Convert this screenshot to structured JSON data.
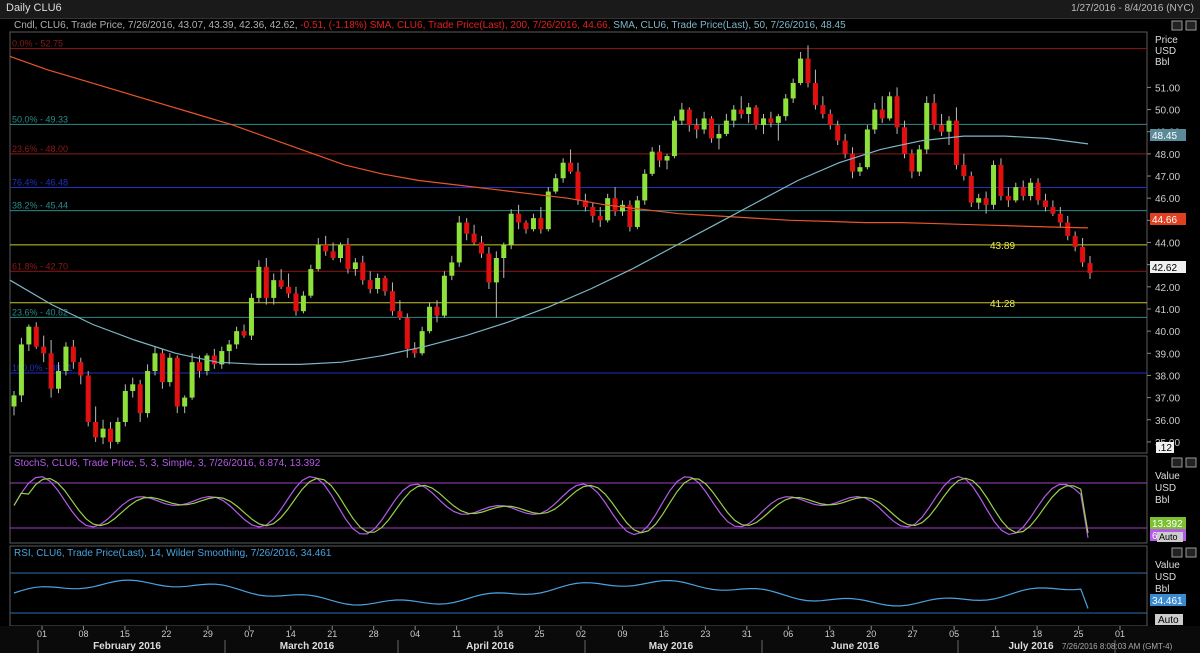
{
  "window": {
    "title": "Daily CLU6",
    "date_range": "1/27/2016 - 8/4/2016 (NYC)"
  },
  "legend": {
    "main_prefix": "Cndl, CLU6, Trade Price, 7/26/2016, 43.07, 43.39, 42.36, 42.62,",
    "main_change": "-0.51, (-1.18%)",
    "sma200": "SMA, CLU6, Trade Price(Last), 200, 7/26/2016, 44.66,",
    "sma50": "SMA, CLU6, Trade Price(Last), 50, 7/26/2016, 48.45",
    "stoch": "StochS, CLU6, Trade Price, 5, 3, Simple, 3, 7/26/2016, 6.874, 13.392",
    "rsi": "RSI, CLU6, Trade Price(Last), 14, Wilder Smoothing, 7/26/2016, 34.461"
  },
  "colors": {
    "up": "#8ee03a",
    "down": "#e01010",
    "sma200": "#e8552a",
    "sma50": "#7fb6c8",
    "stoch_k": "#b35ce8",
    "stoch_d": "#9ad04a",
    "rsi": "#4aa3e0",
    "grid_red": "#8a1a1a",
    "grid_cyan": "#2a8a8a",
    "grid_yellow": "#c8c830",
    "grid_blue": "#2030c0"
  },
  "main_axis": {
    "title": [
      "Price",
      "USD",
      "Bbl"
    ],
    "ticks": [
      "52.00",
      "51.00",
      "50.00",
      "49.00",
      "48.00",
      "47.00",
      "46.00",
      "45.00",
      "44.00",
      "43.00",
      "42.00",
      "41.00",
      "40.00",
      "39.00",
      "38.00",
      "37.00",
      "36.00",
      "35.00"
    ],
    "badges": {
      "sma50": "48.45",
      "sma200": "44.66",
      "last": "42.62",
      "last2": ".12"
    }
  },
  "fib_levels": [
    {
      "label": "0.0% - 52.75",
      "value": 52.75,
      "color": "red"
    },
    {
      "label": "50.0% - 49.33",
      "value": 49.33,
      "color": "cyan"
    },
    {
      "label": "23.6% - 48.00",
      "value": 48.0,
      "color": "red"
    },
    {
      "label": "76.4% - 46.48",
      "value": 46.48,
      "color": "blue"
    },
    {
      "label": "38.2% - 45.44",
      "value": 45.44,
      "color": "cyan"
    },
    {
      "label": "",
      "value": 43.89,
      "color": "yellow",
      "right_label": "43.89"
    },
    {
      "label": "61.8% - 42.70",
      "value": 42.7,
      "color": "red"
    },
    {
      "label": "",
      "value": 41.28,
      "color": "yellow",
      "right_label": "41.28"
    },
    {
      "label": "23.6% - 40.62",
      "value": 40.62,
      "color": "cyan"
    },
    {
      "label": "100.0% - 38.11",
      "value": 38.11,
      "color": "blue"
    }
  ],
  "stoch_axis": {
    "title": [
      "Value",
      "USD",
      "Bbl"
    ],
    "badges": {
      "k": "13.392",
      "d": "6.874",
      "auto": "Auto"
    },
    "levels": [
      80,
      20
    ]
  },
  "rsi_axis": {
    "title": [
      "Value",
      "USD",
      "Bbl"
    ],
    "badges": {
      "rsi": "34.461",
      "auto": "Auto"
    },
    "levels": [
      70,
      30
    ]
  },
  "x_axis": {
    "day_ticks": [
      "01",
      "08",
      "15",
      "22",
      "29",
      "07",
      "14",
      "21",
      "28",
      "04",
      "11",
      "18",
      "25",
      "02",
      "09",
      "16",
      "23",
      "31",
      "06",
      "13",
      "20",
      "27",
      "05",
      "11",
      "18",
      "25",
      "01"
    ],
    "months": [
      "February 2016",
      "March 2016",
      "April 2016",
      "May 2016",
      "June 2016",
      "July 2016"
    ]
  },
  "status": "7/26/2016 8:08:03 AM (GMT-4)",
  "chart_data": {
    "type": "candlestick",
    "title": "Daily CLU6",
    "ylabel": "Price USD Bbl",
    "ylim": [
      34.5,
      53.5
    ],
    "candles": [
      [
        36.6,
        37.3,
        36.2,
        37.1
      ],
      [
        37.1,
        39.7,
        36.8,
        39.4
      ],
      [
        39.4,
        40.3,
        39.1,
        40.2
      ],
      [
        40.2,
        40.4,
        39.2,
        39.3
      ],
      [
        39.3,
        39.8,
        38.6,
        39.0
      ],
      [
        39.0,
        39.6,
        37.0,
        37.4
      ],
      [
        37.4,
        38.6,
        37.2,
        38.2
      ],
      [
        38.2,
        39.5,
        38.0,
        39.3
      ],
      [
        39.3,
        39.6,
        38.3,
        38.6
      ],
      [
        38.6,
        38.8,
        37.6,
        38.0
      ],
      [
        38.0,
        38.2,
        35.7,
        35.9
      ],
      [
        35.9,
        36.6,
        35.0,
        35.2
      ],
      [
        35.2,
        36.0,
        34.9,
        35.6
      ],
      [
        35.6,
        35.9,
        34.7,
        35.0
      ],
      [
        35.0,
        36.1,
        34.9,
        35.9
      ],
      [
        35.9,
        37.6,
        35.7,
        37.3
      ],
      [
        37.3,
        37.9,
        37.0,
        37.6
      ],
      [
        37.6,
        37.8,
        35.9,
        36.3
      ],
      [
        36.3,
        38.5,
        36.1,
        38.2
      ],
      [
        38.2,
        39.3,
        38.0,
        39.0
      ],
      [
        39.0,
        39.2,
        37.4,
        37.7
      ],
      [
        37.7,
        39.0,
        37.5,
        38.8
      ],
      [
        38.8,
        38.9,
        36.3,
        36.6
      ],
      [
        36.6,
        37.1,
        36.3,
        37.0
      ],
      [
        37.0,
        39.0,
        36.9,
        38.6
      ],
      [
        38.6,
        38.9,
        37.9,
        38.2
      ],
      [
        38.2,
        39.0,
        38.0,
        38.9
      ],
      [
        38.9,
        39.2,
        38.3,
        38.5
      ],
      [
        38.5,
        39.3,
        38.3,
        39.1
      ],
      [
        39.1,
        39.6,
        38.5,
        39.4
      ],
      [
        39.4,
        40.2,
        39.2,
        40.0
      ],
      [
        40.0,
        40.3,
        39.7,
        39.8
      ],
      [
        39.8,
        41.7,
        39.6,
        41.5
      ],
      [
        41.5,
        43.2,
        41.3,
        42.9
      ],
      [
        42.9,
        43.3,
        41.2,
        41.5
      ],
      [
        41.5,
        42.6,
        41.2,
        42.3
      ],
      [
        42.3,
        42.8,
        41.9,
        42.0
      ],
      [
        42.0,
        42.6,
        41.5,
        41.7
      ],
      [
        41.7,
        42.0,
        40.7,
        40.9
      ],
      [
        40.9,
        41.8,
        40.8,
        41.6
      ],
      [
        41.6,
        43.0,
        41.5,
        42.8
      ],
      [
        42.8,
        44.2,
        42.7,
        43.9
      ],
      [
        43.9,
        44.3,
        43.4,
        43.6
      ],
      [
        43.6,
        44.0,
        43.2,
        43.3
      ],
      [
        43.3,
        44.0,
        43.1,
        43.9
      ],
      [
        43.9,
        44.2,
        42.6,
        42.8
      ],
      [
        42.8,
        43.3,
        42.5,
        43.1
      ],
      [
        43.1,
        43.4,
        42.1,
        42.3
      ],
      [
        42.3,
        42.7,
        41.7,
        41.9
      ],
      [
        41.9,
        42.6,
        41.7,
        42.4
      ],
      [
        42.4,
        42.5,
        41.6,
        41.8
      ],
      [
        41.8,
        42.2,
        40.7,
        40.9
      ],
      [
        40.9,
        41.4,
        40.5,
        40.6
      ],
      [
        40.6,
        40.8,
        38.8,
        39.2
      ],
      [
        39.2,
        39.5,
        38.8,
        39.0
      ],
      [
        39.0,
        40.2,
        38.9,
        40.0
      ],
      [
        40.0,
        41.3,
        39.9,
        41.1
      ],
      [
        41.1,
        41.4,
        40.4,
        40.7
      ],
      [
        40.7,
        42.7,
        40.6,
        42.5
      ],
      [
        42.5,
        43.4,
        42.3,
        43.1
      ],
      [
        43.1,
        45.2,
        42.9,
        44.9
      ],
      [
        44.9,
        45.1,
        44.1,
        44.4
      ],
      [
        44.4,
        44.8,
        43.9,
        44.0
      ],
      [
        44.0,
        44.3,
        43.3,
        43.5
      ],
      [
        43.5,
        43.8,
        41.9,
        42.2
      ],
      [
        42.2,
        43.6,
        40.6,
        43.3
      ],
      [
        43.3,
        44.0,
        42.4,
        43.9
      ],
      [
        43.9,
        45.5,
        43.7,
        45.3
      ],
      [
        45.3,
        45.7,
        44.6,
        44.9
      ],
      [
        44.9,
        45.0,
        44.4,
        44.6
      ],
      [
        44.6,
        45.3,
        44.5,
        45.1
      ],
      [
        45.1,
        45.6,
        44.4,
        44.6
      ],
      [
        44.6,
        46.5,
        44.5,
        46.3
      ],
      [
        46.3,
        47.1,
        46.2,
        46.9
      ],
      [
        46.9,
        47.8,
        46.7,
        47.6
      ],
      [
        47.6,
        48.2,
        47.1,
        47.2
      ],
      [
        47.2,
        47.6,
        45.7,
        45.9
      ],
      [
        45.9,
        46.2,
        45.4,
        45.6
      ],
      [
        45.6,
        45.8,
        44.9,
        45.2
      ],
      [
        45.2,
        45.6,
        44.7,
        45.0
      ],
      [
        45.0,
        46.2,
        44.9,
        46.0
      ],
      [
        46.0,
        46.5,
        45.2,
        45.4
      ],
      [
        45.4,
        45.9,
        45.2,
        45.7
      ],
      [
        45.7,
        45.9,
        44.5,
        44.7
      ],
      [
        44.7,
        46.1,
        44.6,
        45.9
      ],
      [
        45.9,
        47.3,
        45.7,
        47.1
      ],
      [
        47.1,
        48.3,
        47.0,
        48.1
      ],
      [
        48.1,
        48.4,
        47.4,
        47.7
      ],
      [
        47.7,
        48.0,
        47.3,
        47.9
      ],
      [
        47.9,
        49.7,
        47.8,
        49.5
      ],
      [
        49.5,
        50.3,
        49.3,
        50.0
      ],
      [
        50.0,
        50.1,
        49.0,
        49.3
      ],
      [
        49.3,
        49.6,
        48.7,
        49.1
      ],
      [
        49.1,
        49.9,
        48.9,
        49.6
      ],
      [
        49.6,
        49.7,
        48.5,
        48.7
      ],
      [
        48.7,
        49.3,
        48.2,
        48.9
      ],
      [
        48.9,
        49.8,
        48.8,
        49.5
      ],
      [
        49.5,
        50.2,
        49.2,
        50.0
      ],
      [
        50.0,
        50.6,
        49.6,
        49.8
      ],
      [
        49.8,
        50.3,
        49.4,
        50.1
      ],
      [
        50.1,
        50.2,
        49.1,
        49.3
      ],
      [
        49.3,
        49.8,
        48.9,
        49.6
      ],
      [
        49.6,
        49.9,
        49.2,
        49.4
      ],
      [
        49.4,
        49.8,
        48.6,
        49.7
      ],
      [
        49.7,
        50.7,
        49.5,
        50.5
      ],
      [
        50.5,
        51.4,
        50.3,
        51.2
      ],
      [
        51.2,
        52.6,
        51.1,
        52.3
      ],
      [
        52.3,
        52.9,
        51.0,
        51.2
      ],
      [
        51.2,
        51.8,
        50.0,
        50.2
      ],
      [
        50.2,
        50.6,
        49.6,
        49.8
      ],
      [
        49.8,
        50.0,
        49.1,
        49.3
      ],
      [
        49.3,
        49.5,
        48.4,
        48.6
      ],
      [
        48.6,
        48.9,
        47.8,
        48.0
      ],
      [
        48.0,
        48.3,
        46.9,
        47.2
      ],
      [
        47.2,
        47.6,
        47.0,
        47.4
      ],
      [
        47.4,
        49.3,
        47.3,
        49.1
      ],
      [
        49.1,
        50.3,
        48.9,
        50.0
      ],
      [
        50.0,
        50.6,
        49.4,
        49.6
      ],
      [
        49.6,
        50.8,
        49.5,
        50.6
      ],
      [
        50.6,
        51.0,
        48.9,
        49.2
      ],
      [
        49.2,
        49.5,
        47.8,
        48.0
      ],
      [
        48.0,
        48.2,
        46.9,
        47.2
      ],
      [
        47.2,
        48.4,
        47.0,
        48.2
      ],
      [
        48.2,
        50.6,
        48.0,
        50.3
      ],
      [
        50.3,
        50.7,
        49.1,
        49.3
      ],
      [
        49.3,
        49.8,
        48.8,
        49.0
      ],
      [
        49.0,
        49.7,
        48.4,
        49.5
      ],
      [
        49.5,
        50.1,
        47.3,
        47.5
      ],
      [
        47.5,
        48.0,
        46.8,
        47.0
      ],
      [
        47.0,
        47.2,
        45.6,
        45.8
      ],
      [
        45.8,
        46.2,
        45.5,
        46.0
      ],
      [
        46.0,
        46.3,
        45.3,
        45.7
      ],
      [
        45.7,
        47.7,
        45.5,
        47.5
      ],
      [
        47.5,
        47.8,
        45.9,
        46.1
      ],
      [
        46.1,
        46.5,
        45.6,
        45.9
      ],
      [
        45.9,
        46.7,
        45.8,
        46.5
      ],
      [
        46.5,
        46.8,
        45.9,
        46.1
      ],
      [
        46.1,
        46.9,
        45.9,
        46.7
      ],
      [
        46.7,
        46.9,
        45.7,
        45.9
      ],
      [
        45.9,
        46.2,
        45.4,
        45.6
      ],
      [
        45.6,
        45.9,
        45.2,
        45.3
      ],
      [
        45.3,
        45.6,
        44.7,
        44.9
      ],
      [
        44.9,
        45.2,
        44.1,
        44.3
      ],
      [
        44.3,
        44.5,
        43.6,
        43.8
      ],
      [
        43.8,
        44.2,
        42.9,
        43.1
      ],
      [
        43.07,
        43.39,
        42.36,
        42.62
      ]
    ],
    "sma200": [
      52.4,
      51.8,
      51.3,
      50.8,
      50.3,
      49.8,
      49.3,
      48.7,
      48.1,
      47.5,
      47.1,
      46.8,
      46.6,
      46.4,
      46.2,
      46.0,
      45.7,
      45.5,
      45.3,
      45.2,
      45.1,
      45.0,
      44.95,
      44.9,
      44.9,
      44.85,
      44.8,
      44.75,
      44.7,
      44.66
    ],
    "sma50": [
      42.3,
      41.2,
      40.3,
      39.6,
      39.0,
      38.6,
      38.5,
      38.5,
      38.6,
      38.9,
      39.3,
      39.8,
      40.4,
      41.1,
      41.9,
      42.8,
      43.8,
      44.8,
      45.8,
      46.8,
      47.6,
      48.2,
      48.6,
      48.8,
      48.8,
      48.7,
      48.45
    ],
    "stoch_k_last": 6.874,
    "stoch_d_last": 13.392,
    "rsi_last": 34.461
  }
}
